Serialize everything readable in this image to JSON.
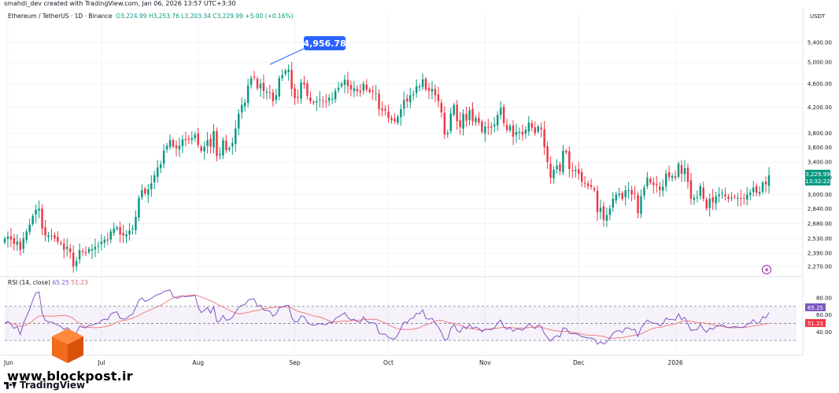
{
  "creator_line": "smahdi_dev created with TradingView.com, Jan 06, 2026 13:57 UTC+3:30",
  "symbol_line": "Ethereum / TetherUS · 1D · Binance",
  "ohlc_line": "O3,224.99  H3,253.76  L3,203.34  C3,229.99  +5.00 (+0.16%)",
  "rsi_label": "RSI (14, close)",
  "rsi_value_1": "65.25",
  "rsi_value_2": "51.23",
  "unit_label": "USDT",
  "peak_label": "4,956.78",
  "last_price_label": "3,229.99",
  "countdown_label": "13:32:22",
  "rsi_badge_1": "65.25",
  "rsi_badge_2": "51.23",
  "watermark_text": "www.blockpost.ir",
  "tv_logo_text": "TradingView",
  "colors": {
    "up": "#089981",
    "down": "#f23645",
    "rsi_line": "#7e57c2",
    "rsi_ma": "#f08080",
    "accent": "#2962ff"
  },
  "chart_data": {
    "type": "candlestick",
    "series": [
      {
        "name": "Ethereum / TetherUS",
        "timeframe": "1D",
        "exchange": "Binance"
      }
    ],
    "y_scale": "log",
    "ylim": [
      2210,
      5700
    ],
    "price_ticks": [
      "5,400.00",
      "5,000.00",
      "4,600.00",
      "4,200.00",
      "3,800.00",
      "3,600.00",
      "3,400.00",
      "3,200.00",
      "3,000.00",
      "2,840.00",
      "2,680.00",
      "2,530.00",
      "2,390.00",
      "2,270.00"
    ],
    "price_tick_values": [
      5400,
      5000,
      4600,
      4200,
      3800,
      3600,
      3400,
      3200,
      3000,
      2840,
      2680,
      2530,
      2390,
      2270
    ],
    "x_ticks": [
      "Jun",
      "Jul",
      "Aug",
      "Sep",
      "Oct",
      "Nov",
      "Dec",
      "2026"
    ],
    "x_tick_dates": [
      "2025-06-01",
      "2025-07-01",
      "2025-08-01",
      "2025-09-01",
      "2025-10-01",
      "2025-11-01",
      "2025-12-01",
      "2026-01-01"
    ],
    "x_range": [
      "2025-05-31",
      "2026-01-06"
    ],
    "peak_date": "2025-08-24",
    "peak_value": 4956.78,
    "last": {
      "open": 3224.99,
      "high": 3253.76,
      "low": 3203.34,
      "close": 3229.99
    },
    "daily_close_approx": [
      2530,
      2550,
      2520,
      2480,
      2500,
      2420,
      2530,
      2600,
      2670,
      2760,
      2830,
      2840,
      2630,
      2560,
      2560,
      2560,
      2530,
      2500,
      2480,
      2420,
      2450,
      2400,
      2270,
      2320,
      2420,
      2400,
      2390,
      2430,
      2430,
      2450,
      2460,
      2500,
      2520,
      2510,
      2600,
      2630,
      2640,
      2570,
      2560,
      2570,
      2610,
      2630,
      2750,
      2960,
      3050,
      3010,
      3060,
      3130,
      3230,
      3330,
      3370,
      3550,
      3620,
      3700,
      3610,
      3590,
      3620,
      3710,
      3700,
      3720,
      3730,
      3780,
      3630,
      3550,
      3610,
      3700,
      3610,
      3830,
      3480,
      3510,
      3700,
      3560,
      3590,
      3660,
      3870,
      4100,
      4240,
      4280,
      4570,
      4700,
      4710,
      4520,
      4600,
      4470,
      4460,
      4440,
      4300,
      4400,
      4700,
      4760,
      4840,
      4860,
      4510,
      4350,
      4360,
      4620,
      4590,
      4390,
      4300,
      4270,
      4300,
      4330,
      4300,
      4290,
      4360,
      4340,
      4480,
      4530,
      4600,
      4670,
      4560,
      4500,
      4520,
      4470,
      4450,
      4600,
      4500,
      4460,
      4460,
      4440,
      4170,
      4150,
      4150,
      4030,
      4000,
      3980,
      4050,
      4170,
      4320,
      4300,
      4400,
      4420,
      4560,
      4550,
      4680,
      4500,
      4480,
      4510,
      4400,
      4300,
      4120,
      3780,
      3810,
      4100,
      4240,
      3980,
      3890,
      4100,
      3990,
      4150,
      3980,
      4030,
      3960,
      3820,
      3900,
      3890,
      3880,
      3930,
      4080,
      4190,
      3950,
      3850,
      3910,
      3750,
      3820,
      3820,
      3780,
      3850,
      3960,
      3880,
      3800,
      3900,
      3860,
      3600,
      3400,
      3200,
      3300,
      3350,
      3280,
      3550,
      3530,
      3310,
      3290,
      3300,
      3250,
      3150,
      3130,
      3100,
      3090,
      3050,
      2800,
      2850,
      2720,
      2770,
      2840,
      2950,
      3000,
      3010,
      2950,
      3050,
      3050,
      3000,
      3010,
      2790,
      2980,
      3080,
      3200,
      3140,
      3110,
      3110,
      3050,
      3090,
      3250,
      3210,
      3220,
      3200,
      3380,
      3250,
      3320,
      3150,
      2950,
      2960,
      2970,
      3100,
      2950,
      2840,
      2950,
      2910,
      2980,
      3000,
      3020,
      2980,
      2950,
      2960,
      2970,
      2960,
      2950,
      2960,
      3000,
      3020,
      3080,
      3020,
      3030,
      3140,
      3120,
      3230
    ]
  },
  "rsi_data": {
    "ylim": [
      20,
      90
    ],
    "levels": [
      70,
      50,
      30
    ],
    "tick_labels": [
      "80.00",
      "60.00",
      "40.00"
    ],
    "tick_values": [
      80,
      60,
      40
    ]
  }
}
